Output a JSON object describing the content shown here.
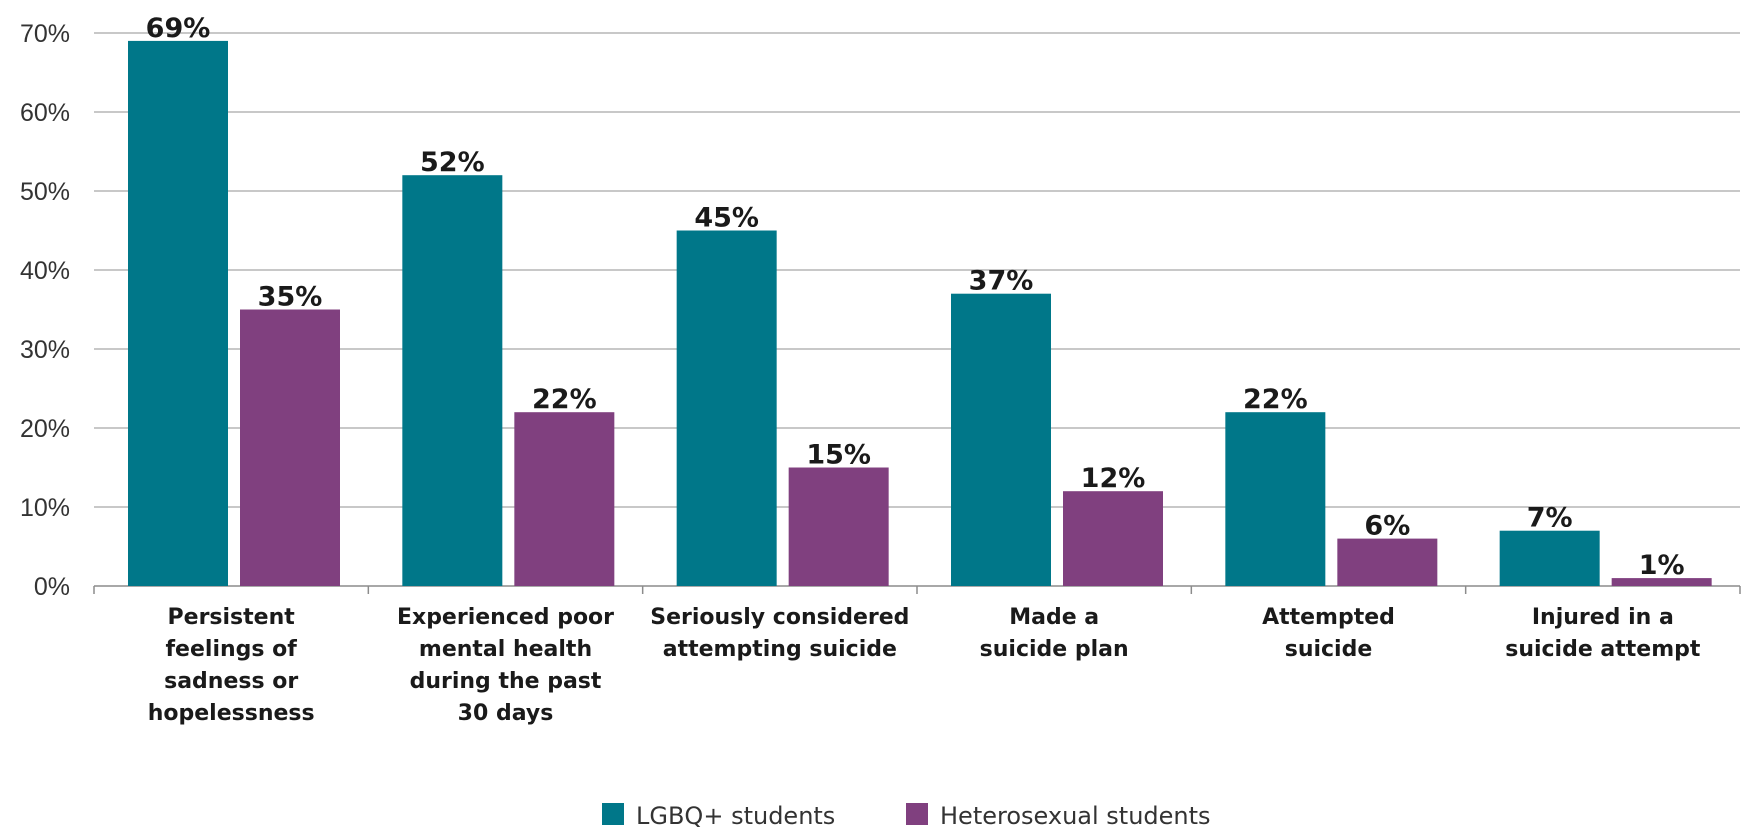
{
  "chart_data": {
    "type": "bar",
    "title": "",
    "xlabel": "",
    "ylabel": "",
    "ylim": [
      0,
      70
    ],
    "yticks": [
      0,
      10,
      20,
      30,
      40,
      50,
      60,
      70
    ],
    "ytick_labels": [
      "0%",
      "10%",
      "20%",
      "30%",
      "40%",
      "50%",
      "60%",
      "70%"
    ],
    "grid": true,
    "legend_position": "bottom-center",
    "categories": [
      [
        "Persistent",
        "feelings of",
        "sadness or",
        "hopelessness"
      ],
      [
        "Experienced poor",
        "mental health",
        "during the past",
        "30 days"
      ],
      [
        "Seriously considered",
        "attempting suicide"
      ],
      [
        "Made a",
        "suicide plan"
      ],
      [
        "Attempted",
        "suicide"
      ],
      [
        "Injured in a",
        "suicide attempt"
      ]
    ],
    "series": [
      {
        "name": "LGBQ+ students",
        "color": "#007789",
        "values": [
          69,
          52,
          45,
          37,
          22,
          7
        ],
        "labels": [
          "69%",
          "52%",
          "45%",
          "37%",
          "22%",
          "7%"
        ]
      },
      {
        "name": "Heterosexual students",
        "color": "#80407f",
        "values": [
          35,
          22,
          15,
          12,
          6,
          1
        ],
        "labels": [
          "35%",
          "22%",
          "15%",
          "12%",
          "6%",
          "1%"
        ]
      }
    ]
  }
}
